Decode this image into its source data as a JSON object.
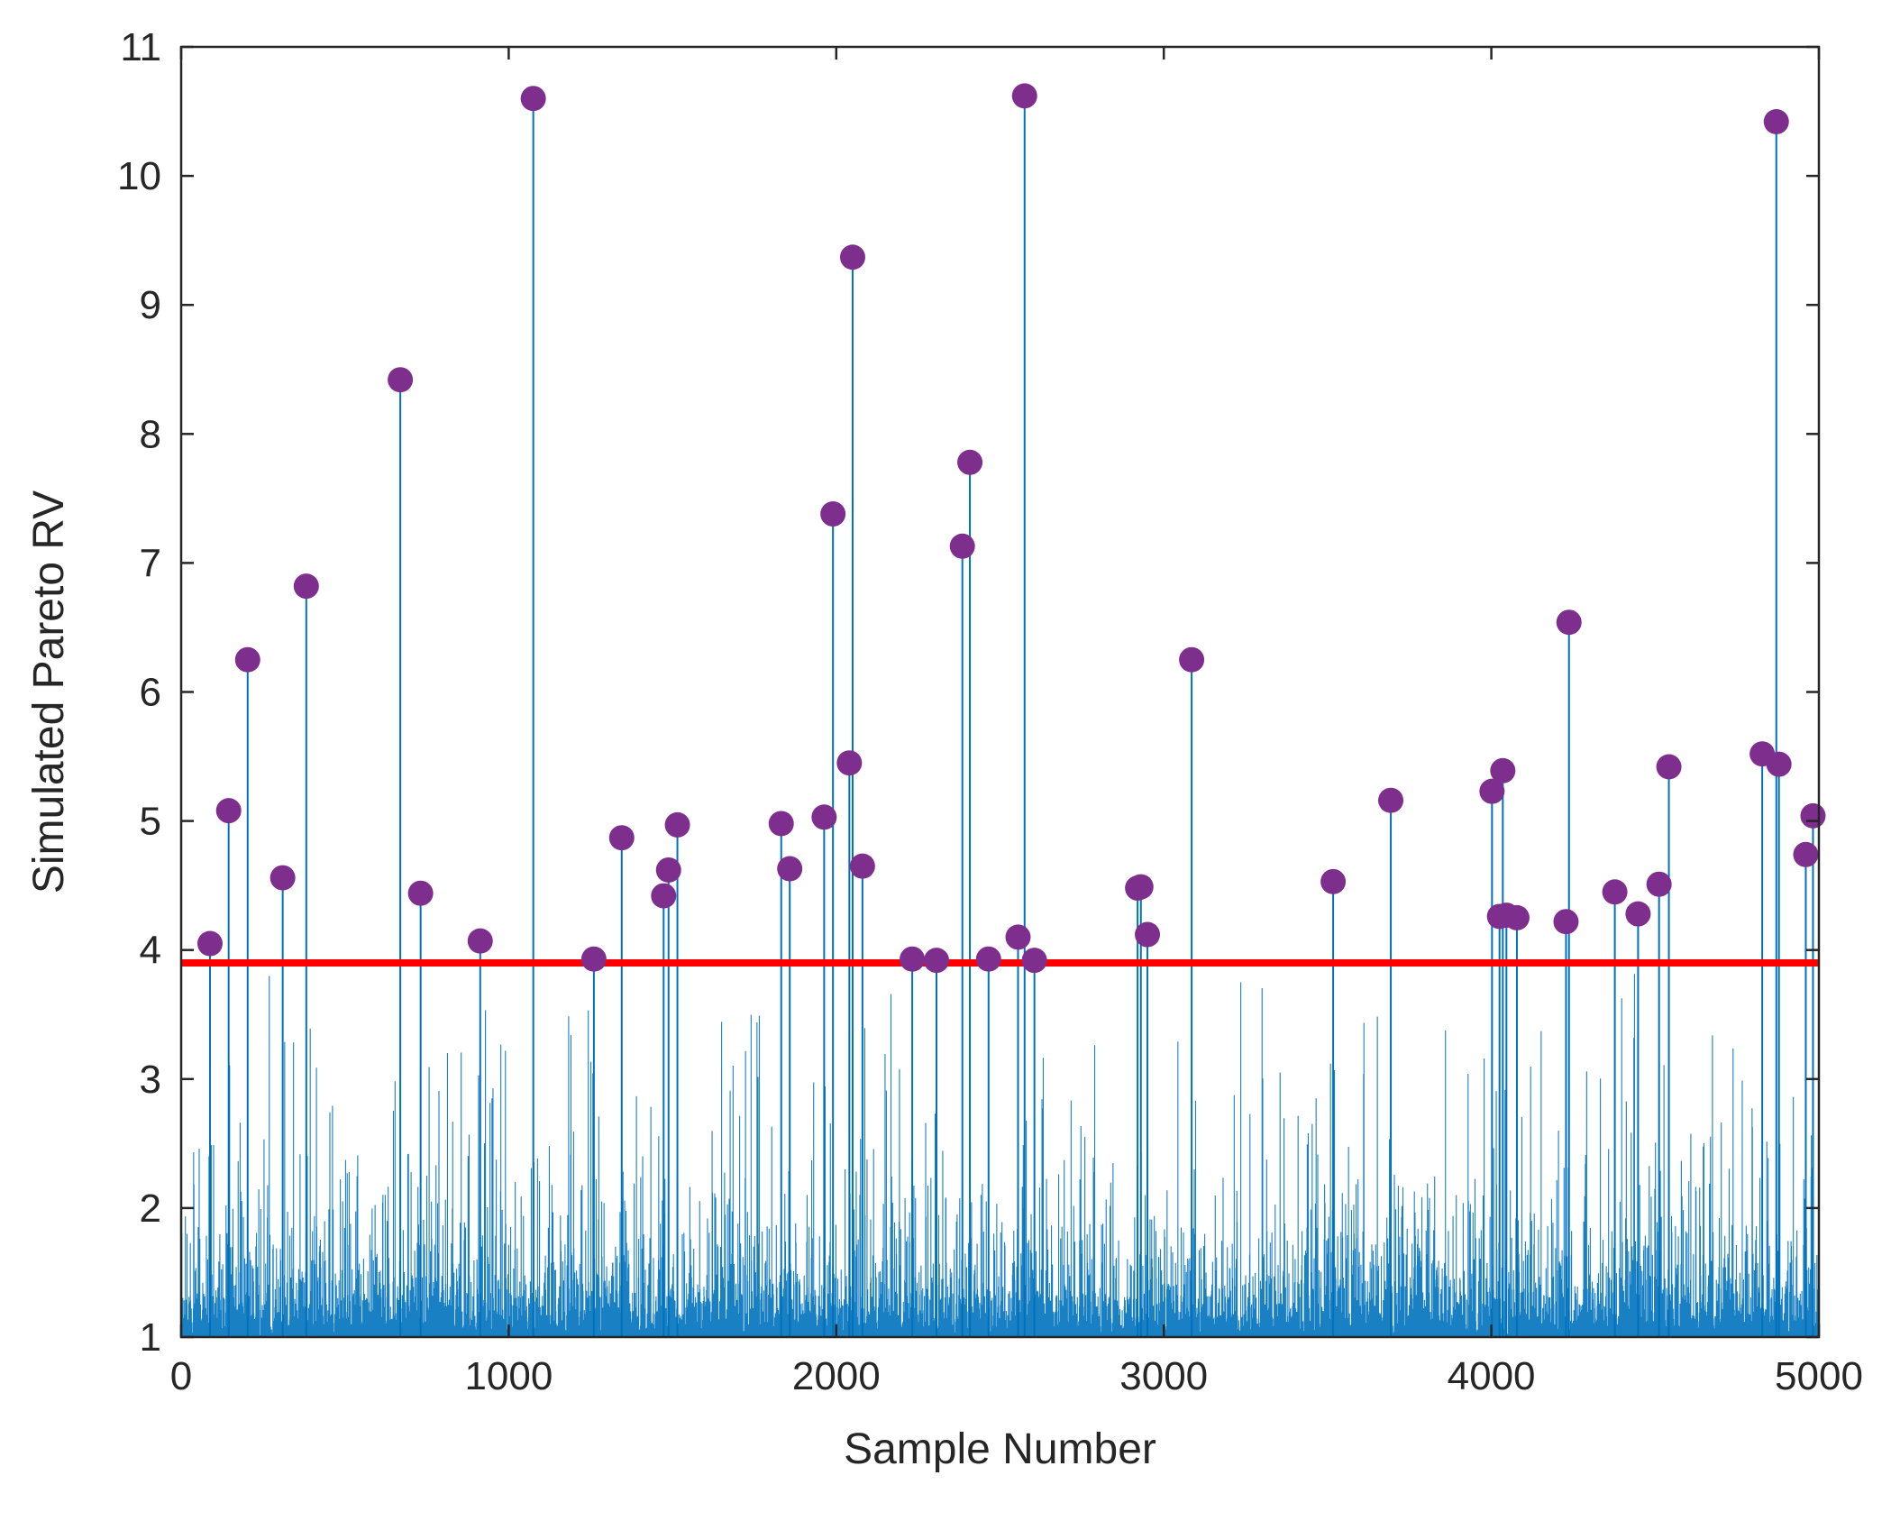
{
  "chart_data": {
    "type": "stem",
    "xlabel": "Sample Number",
    "ylabel": "Simulated Pareto RV",
    "xlim": [
      0,
      5000
    ],
    "ylim": [
      1,
      11
    ],
    "xticks": [
      0,
      1000,
      2000,
      3000,
      4000,
      5000
    ],
    "yticks": [
      1,
      2,
      3,
      4,
      5,
      6,
      7,
      8,
      9,
      10,
      11
    ],
    "grid": false,
    "threshold": {
      "y": 3.9,
      "color": "#ff0000"
    },
    "colors": {
      "stem": "#0072bd",
      "marker": "#7e2f8e",
      "threshold": "#ff0000",
      "axis": "#262626"
    },
    "exceedances": [
      [
        88,
        4.05
      ],
      [
        145,
        5.08
      ],
      [
        203,
        6.25
      ],
      [
        310,
        4.56
      ],
      [
        382,
        6.82
      ],
      [
        669,
        8.42
      ],
      [
        731,
        4.44
      ],
      [
        913,
        4.07
      ],
      [
        1075,
        10.6
      ],
      [
        1260,
        3.93
      ],
      [
        1345,
        4.87
      ],
      [
        1473,
        4.42
      ],
      [
        1488,
        4.62
      ],
      [
        1515,
        4.97
      ],
      [
        1832,
        4.98
      ],
      [
        1858,
        4.63
      ],
      [
        1963,
        5.03
      ],
      [
        1990,
        7.38
      ],
      [
        2040,
        5.45
      ],
      [
        2050,
        9.37
      ],
      [
        2080,
        4.65
      ],
      [
        2232,
        3.93
      ],
      [
        2306,
        3.92
      ],
      [
        2385,
        7.13
      ],
      [
        2408,
        7.78
      ],
      [
        2465,
        3.93
      ],
      [
        2555,
        4.1
      ],
      [
        2575,
        10.62
      ],
      [
        2605,
        3.92
      ],
      [
        2920,
        4.48
      ],
      [
        2930,
        4.49
      ],
      [
        2950,
        4.12
      ],
      [
        3085,
        6.25
      ],
      [
        3517,
        4.53
      ],
      [
        3693,
        5.16
      ],
      [
        4002,
        5.23
      ],
      [
        4025,
        4.26
      ],
      [
        4035,
        5.39
      ],
      [
        4046,
        4.27
      ],
      [
        4078,
        4.25
      ],
      [
        4228,
        4.22
      ],
      [
        4237,
        6.54
      ],
      [
        4377,
        4.45
      ],
      [
        4448,
        4.28
      ],
      [
        4512,
        4.51
      ],
      [
        4542,
        5.42
      ],
      [
        4827,
        5.52
      ],
      [
        4870,
        10.42
      ],
      [
        4878,
        5.44
      ],
      [
        4960,
        4.74
      ],
      [
        4982,
        5.04
      ]
    ]
  }
}
